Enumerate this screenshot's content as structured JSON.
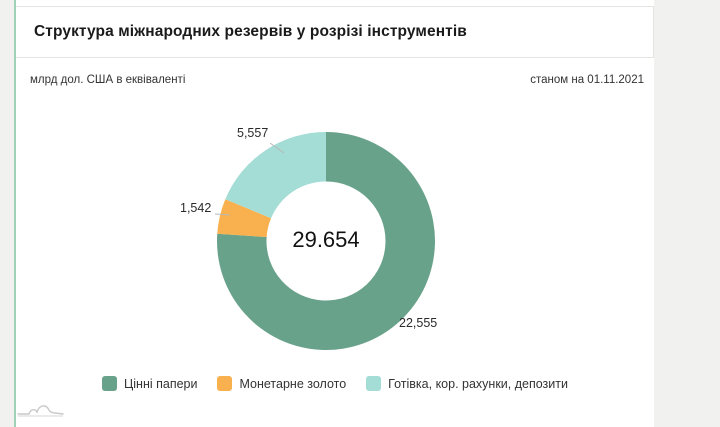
{
  "header": {
    "title": "Структура міжнародних резервів у розрізі інструментів"
  },
  "meta": {
    "units_label": "млрд дол. США в еквіваленті",
    "as_of_label": "станом на 01.11.2021"
  },
  "chart_data": {
    "type": "pie",
    "subtype": "donut",
    "title": "Структура міжнародних резервів у розрізі інструментів",
    "units": "млрд дол. США в еквіваленті",
    "as_of": "01.11.2021",
    "center_label": "29.654",
    "total": 29654,
    "start_angle_deg": 0,
    "direction": "clockwise",
    "legend_position": "bottom",
    "slices": [
      {
        "label": "Цінні папери",
        "value": 22555,
        "display": "22,555",
        "color": "#69a28a"
      },
      {
        "label": "Монетарне золото",
        "value": 1542,
        "display": "1,542",
        "color": "#f9b04e"
      },
      {
        "label": "Готівка, кор. рахунки, депозити",
        "value": 5557,
        "display": "5,557",
        "color": "#a4dcd6"
      }
    ]
  },
  "colors": {
    "page_bg": "#f1f1ef",
    "card_bg": "#ffffff",
    "card_accent_border": "#9fd2b8",
    "connector": "#b8b8b8",
    "watermark": "#c9c9c9"
  }
}
